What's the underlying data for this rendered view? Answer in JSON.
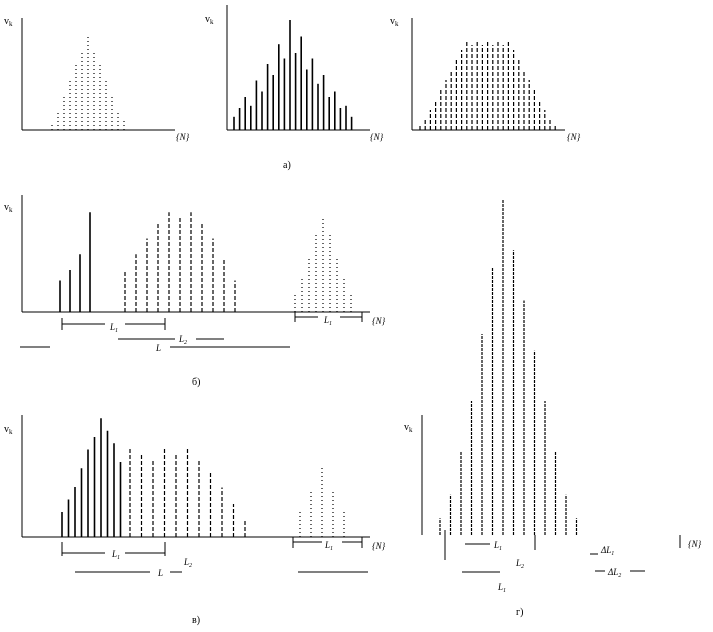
{
  "axis": {
    "y_label": "v",
    "y_subscript": "k",
    "x_label": "{N}"
  },
  "captions": {
    "a": "а)",
    "b": "б)",
    "v": "в)",
    "g": "г)"
  },
  "annotations": {
    "b": {
      "l1": "L",
      "l1_sub": "1",
      "l2": "L",
      "l2_sub": "2",
      "l": "L",
      "l_right": "L",
      "l_right_sub": "1"
    },
    "v": {
      "l1": "L",
      "l1_sub": "1",
      "l2": "L",
      "l2_sub": "2",
      "l": "L",
      "l_right": "L",
      "l_right_sub": "1"
    },
    "g": {
      "l1": "L",
      "l1_sub": "1",
      "l2": "L",
      "l2_sub": "2",
      "l_bottom": "L",
      "l_bottom_sub": "1",
      "dl1": "ΔL",
      "dl1_sub": "1",
      "dl2": "ΔL",
      "dl2_sub": "2"
    }
  },
  "chart_data": [
    {
      "panel": "а)-1",
      "type": "bar",
      "style": "dotted",
      "shape": "triangle",
      "values": [
        0.05,
        0.2,
        0.35,
        0.5,
        0.65,
        0.8,
        0.95,
        0.8,
        0.65,
        0.5,
        0.35,
        0.2,
        0.1
      ]
    },
    {
      "panel": "а)-2",
      "type": "bar",
      "style": "solid",
      "shape": "spiky",
      "values": [
        0.12,
        0.2,
        0.3,
        0.22,
        0.45,
        0.35,
        0.6,
        0.5,
        0.78,
        0.65,
        1.0,
        0.7,
        0.85,
        0.55,
        0.65,
        0.42,
        0.5,
        0.3,
        0.35,
        0.2,
        0.22,
        0.12
      ]
    },
    {
      "panel": "а)-3",
      "type": "bar",
      "style": "dashed",
      "shape": "plateau",
      "values": [
        0.05,
        0.1,
        0.2,
        0.3,
        0.4,
        0.5,
        0.6,
        0.7,
        0.8,
        0.9,
        0.85,
        0.9,
        0.85,
        0.9,
        0.85,
        0.9,
        0.85,
        0.9,
        0.8,
        0.7,
        0.6,
        0.5,
        0.4,
        0.3,
        0.2,
        0.1,
        0.05
      ]
    },
    {
      "panel": "б)",
      "type": "bar",
      "groups": [
        {
          "style": "solid",
          "values": [
            0.3,
            0.4,
            0.55,
            0.95
          ]
        },
        {
          "style": "dashed",
          "values": [
            0.4,
            0.55,
            0.7,
            0.85,
            0.95,
            0.9,
            0.95,
            0.85,
            0.7,
            0.5,
            0.3
          ]
        },
        {
          "style": "dotted",
          "values": [
            0.2,
            0.35,
            0.55,
            0.8,
            0.95,
            0.8,
            0.55,
            0.35,
            0.2
          ]
        }
      ]
    },
    {
      "panel": "в)",
      "type": "bar",
      "groups": [
        {
          "style": "solid",
          "values": [
            0.2,
            0.3,
            0.4,
            0.55,
            0.7,
            0.8,
            0.95,
            0.85,
            0.75,
            0.6
          ]
        },
        {
          "style": "dashed",
          "values": [
            0.8,
            0.75,
            0.7,
            0.8,
            0.75,
            0.8,
            0.7,
            0.6,
            0.45,
            0.3,
            0.15
          ]
        },
        {
          "style": "dotted",
          "values": [
            0.3,
            0.5,
            0.8,
            0.5,
            0.3
          ]
        }
      ]
    },
    {
      "panel": "г)",
      "type": "bar",
      "style": "superposition",
      "shape": "peak",
      "values": [
        0.05,
        0.12,
        0.25,
        0.4,
        0.6,
        0.8,
        1.0,
        0.85,
        0.7,
        0.55,
        0.4,
        0.25,
        0.12,
        0.05
      ]
    }
  ]
}
